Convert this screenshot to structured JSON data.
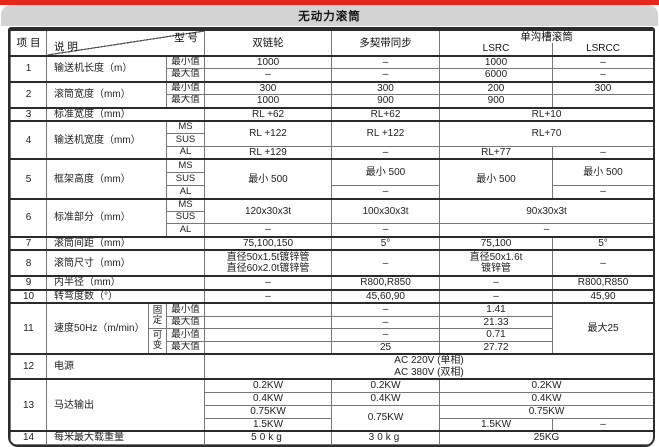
{
  "title": "无动力滚筒",
  "colors": {
    "accent_red": "#e5261d",
    "titlebar_gray": "#d3d3d3",
    "border_dark": "#2c2c2c",
    "border_light": "#9a9a9a",
    "text": "#222222"
  },
  "header": {
    "item": "项 目",
    "desc": "说 明",
    "model": "型 号",
    "col_double_chain": "双链轮",
    "col_poly_belt": "多契带同步",
    "col_single_groove": "单沟槽滚筒",
    "col_lsrc": "LSRC",
    "col_lsrcc": "LSRCC"
  },
  "table": {
    "rows": [
      {
        "h": 10,
        "major": true,
        "cells": [
          {
            "t": "项 目",
            "k": "head",
            "r": 2,
            "n": "header-item"
          },
          {
            "k": "diag",
            "c": 3,
            "r": 2,
            "t": "说 明",
            "t2": "型 号",
            "n": "header-desc-model"
          },
          {
            "t": "双链轮",
            "k": "head",
            "r": 2,
            "n": "header-col-double-chain"
          },
          {
            "t": "多契带同步",
            "k": "head",
            "r": 2,
            "n": "header-col-poly-belt"
          },
          {
            "t": "单沟槽滚筒",
            "k": "group",
            "c": 2,
            "n": "header-col-single-groove"
          }
        ]
      },
      {
        "h": 10,
        "cells": [
          {
            "t": "LSRC",
            "k": "head2",
            "n": "header-col-lsrc"
          },
          {
            "t": "LSRCC",
            "k": "head2",
            "n": "header-col-lsrcc"
          }
        ]
      },
      {
        "h": 12,
        "major": true,
        "cells": [
          {
            "t": "1",
            "k": "item",
            "r": 2
          },
          {
            "t": "输送机长度（m）",
            "k": "desc",
            "c": 2,
            "r": 2
          },
          {
            "t": "最小值",
            "k": "sub"
          },
          {
            "t": "1000"
          },
          {
            "t": "–"
          },
          {
            "t": "1000"
          },
          {
            "t": "–"
          }
        ]
      },
      {
        "h": 12,
        "cells": [
          {
            "t": "最大值",
            "k": "sub"
          },
          {
            "t": "–"
          },
          {
            "t": "–"
          },
          {
            "t": "6000"
          },
          {
            "t": "–"
          }
        ]
      },
      {
        "h": 12,
        "major": true,
        "cells": [
          {
            "t": "2",
            "k": "item",
            "r": 2
          },
          {
            "t": "滚筒宽度（mm）",
            "k": "desc",
            "c": 2,
            "r": 2
          },
          {
            "t": "最小值",
            "k": "sub"
          },
          {
            "t": "300"
          },
          {
            "t": "300"
          },
          {
            "t": "200"
          },
          {
            "t": "300"
          }
        ]
      },
      {
        "h": 12,
        "cells": [
          {
            "t": "最大值",
            "k": "sub"
          },
          {
            "t": "1000"
          },
          {
            "t": "900"
          },
          {
            "t": "900"
          },
          {
            "t": ""
          }
        ]
      },
      {
        "h": 12,
        "major": true,
        "cells": [
          {
            "t": "3",
            "k": "item"
          },
          {
            "t": "标准宽度（mm）",
            "k": "desc",
            "c": 3
          },
          {
            "t": "RL +62"
          },
          {
            "t": "RL+62"
          },
          {
            "t": "RL+10",
            "c": 2
          }
        ]
      },
      {
        "h": 12,
        "major": true,
        "cells": [
          {
            "t": "4",
            "k": "item",
            "r": 3
          },
          {
            "t": "输送机宽度（mm）",
            "k": "desc",
            "c": 2,
            "r": 3
          },
          {
            "t": "MS",
            "k": "sub"
          },
          {
            "t": "RL +122",
            "r": 2
          },
          {
            "t": "RL +122",
            "r": 2
          },
          {
            "t": "RL+70",
            "c": 2,
            "r": 2
          }
        ]
      },
      {
        "h": 13,
        "cells": [
          {
            "t": "SUS",
            "k": "sub"
          }
        ]
      },
      {
        "h": 12,
        "cells": [
          {
            "t": "AL",
            "k": "sub"
          },
          {
            "t": "RL +129"
          },
          {
            "t": "–"
          },
          {
            "t": "RL+77"
          },
          {
            "t": "–"
          }
        ]
      },
      {
        "h": 13,
        "major": true,
        "cells": [
          {
            "t": "5",
            "k": "item",
            "r": 3
          },
          {
            "t": "框架高度（mm）",
            "k": "desc",
            "c": 2,
            "r": 3
          },
          {
            "t": "MS",
            "k": "sub"
          },
          {
            "t": "最小 500",
            "r": 3
          },
          {
            "t": "最小 500",
            "r": 2
          },
          {
            "t": "最小 500",
            "r": 3
          },
          {
            "t": "最小 500",
            "r": 2
          }
        ]
      },
      {
        "h": 13,
        "cells": [
          {
            "t": "SUS",
            "k": "sub"
          }
        ]
      },
      {
        "h": 14,
        "cells": [
          {
            "t": "AL",
            "k": "sub"
          },
          {
            "t": "–"
          },
          {
            "t": "–"
          }
        ]
      },
      {
        "h": 12,
        "major": true,
        "cells": [
          {
            "t": "6",
            "k": "item",
            "r": 3
          },
          {
            "t": "标准部分（mm）",
            "k": "desc",
            "c": 2,
            "r": 3
          },
          {
            "t": "MS",
            "k": "sub"
          },
          {
            "t": "120x30x3t",
            "r": 2
          },
          {
            "t": "100x30x3t",
            "r": 2
          },
          {
            "t": "90x30x3t",
            "c": 2,
            "r": 2
          }
        ]
      },
      {
        "h": 12,
        "cells": [
          {
            "t": "SUS",
            "k": "sub"
          }
        ]
      },
      {
        "h": 13,
        "cells": [
          {
            "t": "AL",
            "k": "sub"
          },
          {
            "t": "–"
          },
          {
            "t": "–"
          },
          {
            "t": "–",
            "c": 2
          }
        ]
      },
      {
        "h": 10,
        "major": true,
        "cells": [
          {
            "t": "7",
            "k": "item"
          },
          {
            "t": "滚筒间距（mm）",
            "k": "desc",
            "c": 3
          },
          {
            "t": "75,100,150"
          },
          {
            "t": "5°"
          },
          {
            "t": "75,100"
          },
          {
            "t": "5°"
          }
        ]
      },
      {
        "h": 26,
        "major": true,
        "cells": [
          {
            "t": "8",
            "k": "item"
          },
          {
            "t": "滚筒尺寸（mm）",
            "k": "desc",
            "c": 3
          },
          {
            "t": "直径50x1.5t镀锌管\n直径60x2.0t镀锌管"
          },
          {
            "t": "–"
          },
          {
            "t": "直径50x1.6t\n镀锌管"
          },
          {
            "t": "–"
          }
        ]
      },
      {
        "h": 12,
        "major": true,
        "cells": [
          {
            "t": "9",
            "k": "item"
          },
          {
            "t": "内半径（mm）",
            "k": "desc",
            "c": 3
          },
          {
            "t": "–"
          },
          {
            "t": "R800,R850"
          },
          {
            "t": "–"
          },
          {
            "t": "R800,R850"
          }
        ]
      },
      {
        "h": 12,
        "major": true,
        "cells": [
          {
            "t": "10",
            "k": "item"
          },
          {
            "t": "转弯度数（°）",
            "k": "desc",
            "c": 3
          },
          {
            "t": "–"
          },
          {
            "t": "45,60,90"
          },
          {
            "t": "–"
          },
          {
            "t": "45,90"
          }
        ]
      },
      {
        "h": 12,
        "major": true,
        "cells": [
          {
            "t": "11",
            "k": "item",
            "r": 4
          },
          {
            "t": "速度50Hz（m/min）",
            "k": "desc",
            "r": 4
          },
          {
            "t": "固定",
            "k": "vsub",
            "r": 2
          },
          {
            "t": "最小值",
            "k": "sub"
          },
          {
            "t": ""
          },
          {
            "t": "–"
          },
          {
            "t": "1.41"
          },
          {
            "t": "最大25",
            "r": 4
          }
        ]
      },
      {
        "h": 12,
        "cells": [
          {
            "t": "最大值",
            "k": "sub"
          },
          {
            "t": ""
          },
          {
            "t": "–"
          },
          {
            "t": "21.33"
          }
        ]
      },
      {
        "h": 12,
        "cells": [
          {
            "t": "可变",
            "k": "vsub",
            "r": 2
          },
          {
            "t": "最小值",
            "k": "sub"
          },
          {
            "t": ""
          },
          {
            "t": "–"
          },
          {
            "t": "0.71"
          }
        ]
      },
      {
        "h": 12,
        "cells": [
          {
            "t": "最大值",
            "k": "sub"
          },
          {
            "t": ""
          },
          {
            "t": "25"
          },
          {
            "t": "27.72"
          }
        ]
      },
      {
        "h": 24,
        "major": true,
        "cells": [
          {
            "t": "12",
            "k": "item"
          },
          {
            "t": "电源",
            "k": "desc",
            "c": 3
          },
          {
            "t": "AC 220V (单相)\nAC 380V (双相)",
            "c": 4
          }
        ]
      },
      {
        "h": 13,
        "major": true,
        "cells": [
          {
            "t": "13",
            "k": "item",
            "r": 4
          },
          {
            "t": "马达输出",
            "k": "desc",
            "c": 3,
            "r": 4
          },
          {
            "t": "0.2KW"
          },
          {
            "t": "0.2KW"
          },
          {
            "t": "0.2KW",
            "c": 2
          }
        ]
      },
      {
        "h": 13,
        "cells": [
          {
            "t": "0.4KW"
          },
          {
            "t": "0.4KW"
          },
          {
            "t": "0.4KW",
            "c": 2
          }
        ]
      },
      {
        "h": 13,
        "cells": [
          {
            "t": "0.75KW"
          },
          {
            "t": "0.75KW",
            "r": 2
          },
          {
            "t": "0.75KW",
            "c": 2
          }
        ]
      },
      {
        "h": 13,
        "cells": [
          {
            "t": "1.5KW"
          },
          {
            "t": "1.5KW"
          },
          {
            "t": "–"
          }
        ]
      },
      {
        "h": 13,
        "major": true,
        "cells": [
          {
            "t": "14",
            "k": "item"
          },
          {
            "t": "每米最大载重量",
            "k": "desc",
            "c": 3
          },
          {
            "t": "50kg",
            "cls": "sp"
          },
          {
            "t": "30kg",
            "cls": "sp"
          },
          {
            "t": "25KG",
            "c": 2
          }
        ]
      }
    ]
  }
}
